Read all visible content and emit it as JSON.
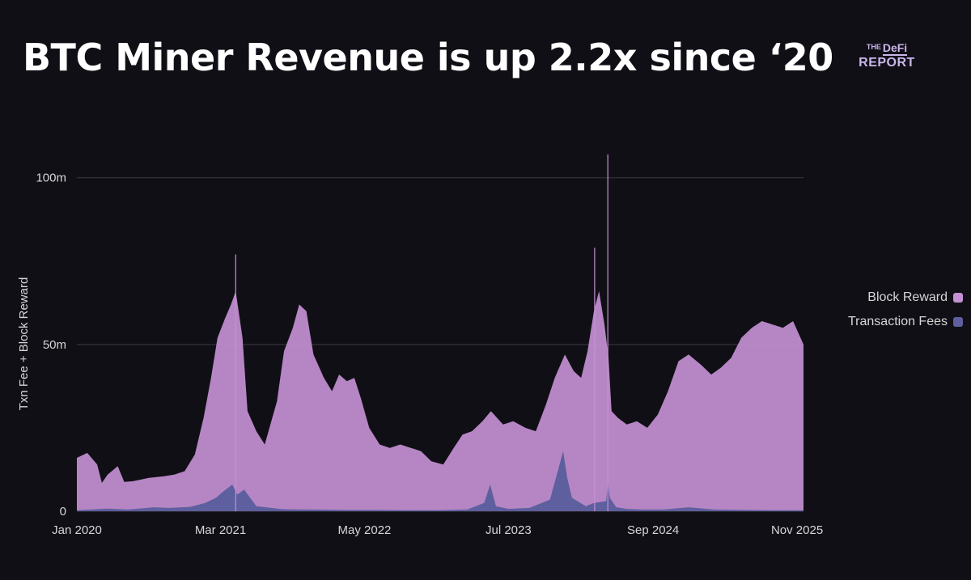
{
  "header": {
    "title": "BTC Miner Revenue is up 2.2x since ‘20",
    "brand": {
      "the": "THE",
      "defi": "DeFi",
      "report": "REPORT"
    }
  },
  "colors": {
    "block_reward": "#c490d4",
    "transaction_fees": "#5e5f9e",
    "grid": "#3a3840",
    "axis_text": "#d6d6d6"
  },
  "chart_data": {
    "type": "area",
    "stacked": true,
    "ylabel": "Txn Fee + Block Reward",
    "ylim": [
      0,
      106000000
    ],
    "y_ticks": [
      {
        "value": 0,
        "label": "0"
      },
      {
        "value": 50000000,
        "label": "50m"
      },
      {
        "value": 100000000,
        "label": "100m"
      }
    ],
    "xlim": [
      "2020-01-01",
      "2025-11-20"
    ],
    "x_ticks": [
      {
        "date": "2020-01-01",
        "label": "Jan 2020"
      },
      {
        "date": "2021-03-01",
        "label": "Mar 2021"
      },
      {
        "date": "2022-05-01",
        "label": "May 2022"
      },
      {
        "date": "2023-07-01",
        "label": "Jul 2023"
      },
      {
        "date": "2024-09-01",
        "label": "Sep 2024"
      },
      {
        "date": "2025-11-01",
        "label": "Nov 2025"
      }
    ],
    "grid": true,
    "legend_position": "right",
    "series": [
      {
        "name": "Block Reward",
        "x": [
          "2020-01-01",
          "2020-02-01",
          "2020-03-01",
          "2020-03-15",
          "2020-04-01",
          "2020-05-01",
          "2020-05-20",
          "2020-06-15",
          "2020-08-01",
          "2020-09-15",
          "2020-10-15",
          "2020-11-15",
          "2020-12-15",
          "2021-01-10",
          "2021-02-01",
          "2021-02-20",
          "2021-03-15",
          "2021-04-01",
          "2021-04-15",
          "2021-05-05",
          "2021-05-20",
          "2021-06-15",
          "2021-07-10",
          "2021-08-15",
          "2021-09-05",
          "2021-10-01",
          "2021-10-20",
          "2021-11-10",
          "2021-12-01",
          "2022-01-01",
          "2022-01-25",
          "2022-02-15",
          "2022-03-10",
          "2022-04-01",
          "2022-04-20",
          "2022-05-15",
          "2022-06-15",
          "2022-07-15",
          "2022-08-15",
          "2022-09-15",
          "2022-10-15",
          "2022-11-15",
          "2022-12-20",
          "2023-01-20",
          "2023-02-15",
          "2023-03-15",
          "2023-04-15",
          "2023-05-10",
          "2023-06-15",
          "2023-07-15",
          "2023-08-20",
          "2023-09-20",
          "2023-10-20",
          "2023-11-15",
          "2023-12-15",
          "2024-01-10",
          "2024-02-01",
          "2024-02-20",
          "2024-03-10",
          "2024-03-25",
          "2024-04-10",
          "2024-04-22",
          "2024-05-01",
          "2024-05-20",
          "2024-06-15",
          "2024-07-15",
          "2024-08-15",
          "2024-09-15",
          "2024-10-15",
          "2024-11-15",
          "2024-12-15",
          "2025-01-20",
          "2025-02-20",
          "2025-03-20",
          "2025-04-20",
          "2025-05-20",
          "2025-06-20",
          "2025-07-20",
          "2025-08-20",
          "2025-09-20",
          "2025-10-20",
          "2025-11-20"
        ],
        "values": [
          16000000,
          17500000,
          14000000,
          8500000,
          11000000,
          13500000,
          8800000,
          9000000,
          10000000,
          10500000,
          11000000,
          12000000,
          17000000,
          28000000,
          40000000,
          52000000,
          58000000,
          62000000,
          66000000,
          52000000,
          30000000,
          24000000,
          20000000,
          33000000,
          48000000,
          55000000,
          62000000,
          60000000,
          47000000,
          40000000,
          36000000,
          41000000,
          39000000,
          40000000,
          34000000,
          25000000,
          20000000,
          19000000,
          20000000,
          19000000,
          18000000,
          15000000,
          14000000,
          19000000,
          23000000,
          24000000,
          27000000,
          30000000,
          26000000,
          27000000,
          25000000,
          24000000,
          32000000,
          40000000,
          47000000,
          42000000,
          40000000,
          48000000,
          60000000,
          66000000,
          56000000,
          46000000,
          30000000,
          28000000,
          26000000,
          27000000,
          25000000,
          29000000,
          36000000,
          45000000,
          47000000,
          44000000,
          41000000,
          43000000,
          46000000,
          52000000,
          55000000,
          57000000,
          56000000,
          55000000,
          57000000,
          50000000
        ]
      },
      {
        "name": "Transaction Fees",
        "x": [
          "2020-01-01",
          "2020-04-01",
          "2020-06-01",
          "2020-08-15",
          "2020-10-01",
          "2020-12-01",
          "2021-01-15",
          "2021-02-15",
          "2021-03-10",
          "2021-04-05",
          "2021-04-20",
          "2021-05-10",
          "2021-06-15",
          "2021-09-01",
          "2021-12-01",
          "2022-03-01",
          "2022-06-01",
          "2022-09-01",
          "2022-12-01",
          "2023-03-01",
          "2023-04-20",
          "2023-05-08",
          "2023-05-25",
          "2023-07-01",
          "2023-09-01",
          "2023-11-01",
          "2023-12-10",
          "2023-12-22",
          "2024-01-05",
          "2024-02-15",
          "2024-03-10",
          "2024-04-15",
          "2024-04-20",
          "2024-04-26",
          "2024-05-15",
          "2024-06-15",
          "2024-08-01",
          "2024-10-01",
          "2024-12-15",
          "2025-03-01",
          "2025-06-01",
          "2025-09-01",
          "2025-11-20"
        ],
        "values": [
          300000,
          800000,
          500000,
          1200000,
          1000000,
          1300000,
          2500000,
          4000000,
          6000000,
          8000000,
          5000000,
          6500000,
          1500000,
          600000,
          500000,
          400000,
          400000,
          300000,
          300000,
          500000,
          2500000,
          8000000,
          1500000,
          700000,
          1000000,
          3500000,
          18000000,
          10000000,
          4000000,
          1500000,
          2500000,
          3000000,
          9000000,
          4000000,
          1200000,
          700000,
          500000,
          500000,
          1200000,
          500000,
          400000,
          300000,
          300000
        ]
      }
    ],
    "annotations": [
      {
        "type": "spike",
        "date": "2024-04-20",
        "value": 107000000
      },
      {
        "type": "spike",
        "date": "2021-04-15",
        "value": 77000000
      },
      {
        "type": "spike",
        "date": "2024-03-12",
        "value": 79000000
      }
    ]
  }
}
